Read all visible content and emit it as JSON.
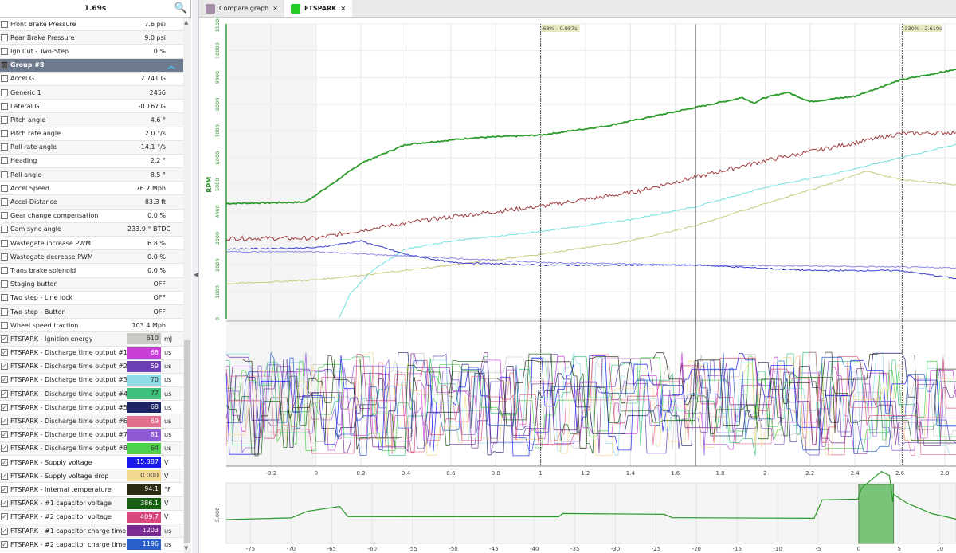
{
  "panel": {
    "time": "1.69s",
    "search_icon": "magnifier-icon",
    "rows": [
      {
        "label": "Front Brake Pressure",
        "value": "7.6 psi"
      },
      {
        "label": "Rear Brake Pressure",
        "value": "9.0 psi"
      },
      {
        "label": "Ign Cut - Two-Step",
        "value": "0 %"
      },
      {
        "label": "Group #8",
        "group": true
      },
      {
        "label": "Accel G",
        "value": "2.741 G"
      },
      {
        "label": "Generic 1",
        "value": "2456"
      },
      {
        "label": "Lateral G",
        "value": "-0.167 G"
      },
      {
        "label": "Pitch angle",
        "value": "4.6 °"
      },
      {
        "label": "Pitch rate angle",
        "value": "2.0 °/s"
      },
      {
        "label": "Roll rate angle",
        "value": "-14.1 °/s"
      },
      {
        "label": "Heading",
        "value": "2.2 °"
      },
      {
        "label": "Roll angle",
        "value": "8.5 °"
      },
      {
        "label": "Accel Speed",
        "value": "76.7 Mph"
      },
      {
        "label": "Accel Distance",
        "value": "83.3 ft"
      },
      {
        "label": "Gear change compensation",
        "value": "0.0 %"
      },
      {
        "label": "Cam sync angle",
        "value": "233.9 ° BTDC"
      },
      {
        "label": "Wastegate increase PWM",
        "value": "6.8 %"
      },
      {
        "label": "Wastegate decrease PWM",
        "value": "0.0 %"
      },
      {
        "label": "Trans brake solenoid",
        "value": "0.0 %"
      },
      {
        "label": "Staging button",
        "value": "OFF"
      },
      {
        "label": "Two step - Line lock",
        "value": "OFF"
      },
      {
        "label": "Two step - Button",
        "value": "OFF"
      },
      {
        "label": "Wheel speed traction",
        "value": "103.4 Mph"
      },
      {
        "label": "FTSPARK - Ignition energy",
        "value": "610",
        "unit": "mJ",
        "color": "#c8cac4",
        "checked": true,
        "dark": true
      },
      {
        "label": "FTSPARK - Discharge time output #1",
        "value": "68",
        "unit": "us",
        "color": "#c83fd6",
        "checked": true
      },
      {
        "label": "FTSPARK - Discharge time output #2",
        "value": "59",
        "unit": "us",
        "color": "#6a3fb8",
        "checked": true
      },
      {
        "label": "FTSPARK - Discharge time output #3",
        "value": "70",
        "unit": "us",
        "color": "#8fdce6",
        "checked": true,
        "dark": true
      },
      {
        "label": "FTSPARK - Discharge time output #4",
        "value": "77",
        "unit": "us",
        "color": "#3cc07a",
        "checked": true,
        "dark": true
      },
      {
        "label": "FTSPARK - Discharge time output #5",
        "value": "68",
        "unit": "us",
        "color": "#1c2466",
        "checked": true
      },
      {
        "label": "FTSPARK - Discharge time output #6",
        "value": "69",
        "unit": "us",
        "color": "#e0708e",
        "checked": true
      },
      {
        "label": "FTSPARK - Discharge time output #7",
        "value": "81",
        "unit": "us",
        "color": "#8e5ad6",
        "checked": true
      },
      {
        "label": "FTSPARK - Discharge time output #8",
        "value": "64",
        "unit": "us",
        "color": "#4ecf4e",
        "checked": true,
        "dark": true
      },
      {
        "label": "FTSPARK - Supply voltage",
        "value": "15.387",
        "unit": "V",
        "color": "#1a1aee",
        "checked": true
      },
      {
        "label": "FTSPARK - Supply voltage drop",
        "value": "0.000",
        "unit": "V",
        "color": "#f4d890",
        "checked": true,
        "dark": true
      },
      {
        "label": "FTSPARK - Internal temperature",
        "value": "94.1",
        "unit": "°F",
        "color": "#2c2c14",
        "checked": true
      },
      {
        "label": "FTSPARK - #1 capacitor voltage",
        "value": "386.1",
        "unit": "V",
        "color": "#14600e",
        "checked": true
      },
      {
        "label": "FTSPARK - #2 capacitor voltage",
        "value": "409.7",
        "unit": "V",
        "color": "#d84a7e",
        "checked": true
      },
      {
        "label": "FTSPARK - #1 capacitor charge time",
        "value": "1203",
        "unit": "us",
        "color": "#7a2a92",
        "checked": true
      },
      {
        "label": "FTSPARK - #2 capacitor charge time",
        "value": "1196",
        "unit": "us",
        "color": "#2a5ec8",
        "checked": true
      }
    ]
  },
  "tabs": [
    {
      "label": "Compare graph",
      "close": "×",
      "icon_color": "#a890a8"
    },
    {
      "label": "FTSPARK",
      "close": "×",
      "icon_color": "#22cc22",
      "active": true
    }
  ],
  "chart_data": {
    "type": "line",
    "main": {
      "ylabel": "RPM",
      "ylim": [
        0,
        11000
      ],
      "yticks": [
        "0",
        "1000",
        "2000",
        "3000",
        "4000",
        "5000",
        "6000",
        "7000",
        "8000",
        "9000",
        "10000",
        "11000"
      ],
      "xlim": [
        -0.4,
        2.85
      ],
      "xticks": [
        "-0.2",
        "0",
        "0.2",
        "0.4",
        "0.6",
        "0.8",
        "1",
        "1.2",
        "1.4",
        "1.6",
        "1.8",
        "2",
        "2.2",
        "2.4",
        "2.6",
        "2.8"
      ],
      "cursors": [
        {
          "t": 1.0,
          "label": "68% - 0.987s"
        },
        {
          "t": 1.69,
          "label": ""
        },
        {
          "t": 2.61,
          "label": "330% - 2.610s"
        }
      ],
      "series": [
        {
          "color": "#2a9a2a",
          "points": [
            [
              -0.4,
              4300
            ],
            [
              -0.05,
              4350
            ],
            [
              0.05,
              4900
            ],
            [
              0.2,
              5800
            ],
            [
              0.4,
              6500
            ],
            [
              0.7,
              6750
            ],
            [
              1.0,
              6850
            ],
            [
              1.3,
              7200
            ],
            [
              1.7,
              7900
            ],
            [
              1.9,
              8250
            ],
            [
              1.95,
              8050
            ],
            [
              2.0,
              8250
            ],
            [
              2.1,
              8450
            ],
            [
              2.2,
              8100
            ],
            [
              2.4,
              8300
            ],
            [
              2.6,
              8900
            ],
            [
              2.85,
              9300
            ]
          ]
        },
        {
          "color": "#a03a3a",
          "points": [
            [
              -0.4,
              3000
            ],
            [
              0.0,
              3000
            ],
            [
              0.2,
              3300
            ],
            [
              0.5,
              3700
            ],
            [
              1.0,
              4200
            ],
            [
              1.4,
              4700
            ],
            [
              1.7,
              5300
            ],
            [
              2.0,
              5900
            ],
            [
              2.3,
              6400
            ],
            [
              2.6,
              6900
            ],
            [
              2.85,
              6950
            ]
          ]
        },
        {
          "color": "#6ee0e0",
          "points": [
            [
              0.1,
              0
            ],
            [
              0.15,
              900
            ],
            [
              0.25,
              1800
            ],
            [
              0.4,
              2600
            ],
            [
              0.6,
              2900
            ],
            [
              1.0,
              3250
            ],
            [
              1.4,
              3700
            ],
            [
              1.7,
              4200
            ],
            [
              2.0,
              4900
            ],
            [
              2.3,
              5400
            ],
            [
              2.6,
              6000
            ],
            [
              2.85,
              6500
            ]
          ]
        },
        {
          "color": "#c8c87a",
          "points": [
            [
              -0.4,
              1300
            ],
            [
              0.0,
              1450
            ],
            [
              0.4,
              1800
            ],
            [
              0.8,
              2200
            ],
            [
              1.0,
              2400
            ],
            [
              1.4,
              2900
            ],
            [
              1.7,
              3500
            ],
            [
              2.0,
              4300
            ],
            [
              2.2,
              4800
            ],
            [
              2.45,
              5500
            ],
            [
              2.6,
              5200
            ],
            [
              2.85,
              5000
            ]
          ]
        },
        {
          "color": "#3a3ad0",
          "points": [
            [
              -0.4,
              2600
            ],
            [
              0.0,
              2650
            ],
            [
              0.2,
              2900
            ],
            [
              0.4,
              2400
            ],
            [
              0.6,
              2100
            ],
            [
              1.0,
              2000
            ],
            [
              1.7,
              2000
            ],
            [
              2.2,
              1800
            ],
            [
              2.6,
              1800
            ],
            [
              2.85,
              1500
            ]
          ]
        },
        {
          "color": "#8a8ae6",
          "points": [
            [
              -0.4,
              2500
            ],
            [
              0.0,
              2500
            ],
            [
              0.5,
              2300
            ],
            [
              1.0,
              2100
            ],
            [
              1.7,
              2000
            ],
            [
              2.4,
              1950
            ],
            [
              2.85,
              1900
            ]
          ]
        }
      ]
    },
    "overview": {
      "ytick": "5,000",
      "xlim": [
        -78,
        12
      ],
      "xticks": [
        "-75",
        "-70",
        "-65",
        "-60",
        "-55",
        "-50",
        "-45",
        "-40",
        "-35",
        "-30",
        "-25",
        "-20",
        "-15",
        "-10",
        "-5",
        "0",
        "5",
        "10"
      ],
      "selection": [
        0,
        4.3
      ],
      "color": "#2a9a2a",
      "selection_color": "#5cb85c"
    }
  }
}
